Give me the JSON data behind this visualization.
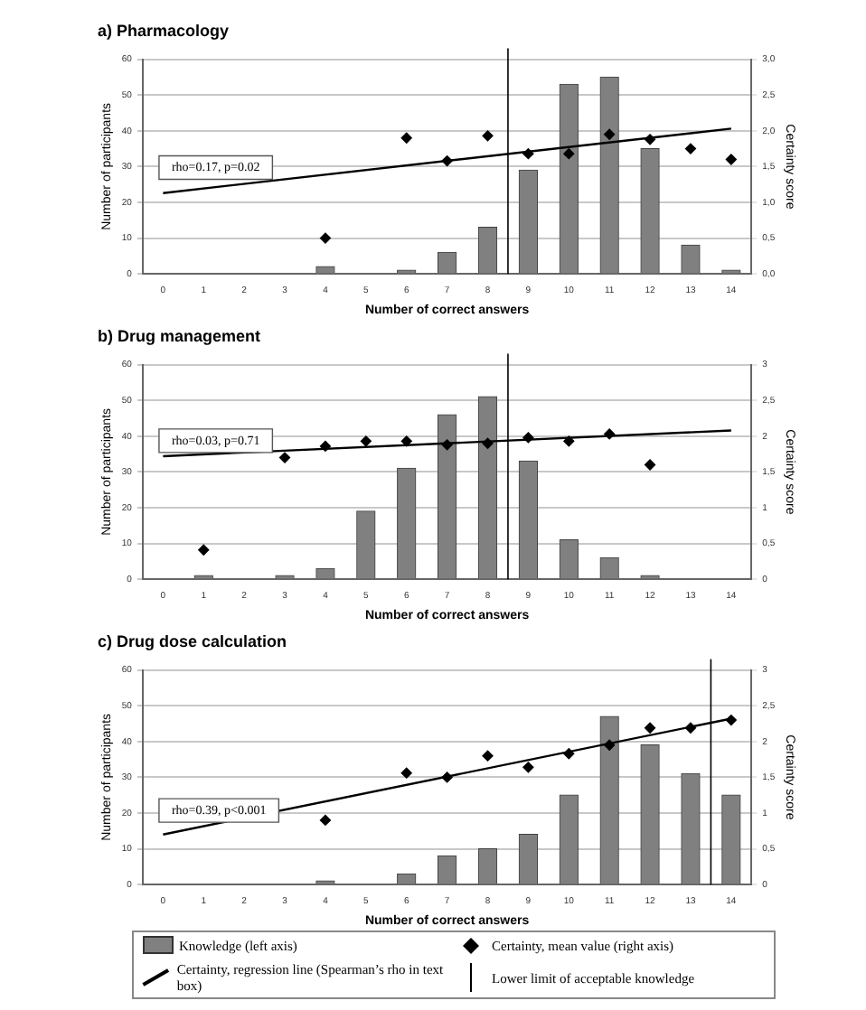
{
  "chart_data": [
    {
      "type": "bar",
      "title": "a) Pharmacology",
      "xlabel": "Number of correct answers",
      "ylabel": "Number of participants",
      "y2label": "Certainty score",
      "xlim": [
        -0.5,
        14.5
      ],
      "xticks": [
        0,
        1,
        2,
        3,
        4,
        5,
        6,
        7,
        8,
        9,
        10,
        11,
        12,
        13,
        14
      ],
      "ylim": [
        0,
        60
      ],
      "yticks": [
        0,
        10,
        20,
        30,
        40,
        50,
        60
      ],
      "y2lim": [
        0,
        3
      ],
      "y2ticks": [
        {
          "value": 0,
          "label": "0,0"
        },
        {
          "value": 0.5,
          "label": "0,5"
        },
        {
          "value": 1,
          "label": "1,0"
        },
        {
          "value": 1.5,
          "label": "1,5"
        },
        {
          "value": 2,
          "label": "2,0"
        },
        {
          "value": 2.5,
          "label": "2,5"
        },
        {
          "value": 3,
          "label": "3,0"
        }
      ],
      "grid": "y",
      "annotations": [
        "rho=0.17, p=0.02"
      ],
      "series": [
        {
          "color": "#808080",
          "x": [
            4,
            6,
            7,
            8,
            9,
            10,
            11,
            12,
            13,
            14
          ],
          "values": [
            2,
            1,
            6,
            13,
            29,
            53,
            55,
            35,
            8,
            1
          ]
        },
        {
          "type": "scatter",
          "color": "#000000",
          "marker": "diamond",
          "axis": "y2",
          "x": [
            4,
            6,
            7,
            8,
            9,
            10,
            11,
            12,
            13,
            14
          ],
          "values": [
            0.5,
            1.9,
            1.58,
            1.93,
            1.68,
            1.68,
            1.95,
            1.88,
            1.75,
            1.6
          ]
        },
        {
          "type": "line",
          "color": "#000000",
          "axis": "y2",
          "x": [
            0,
            14
          ],
          "values": [
            1.13,
            2.03
          ]
        }
      ],
      "ref_lines": [
        {
          "axis": "x",
          "value": 8.5,
          "color": "#000000"
        }
      ]
    },
    {
      "type": "bar",
      "title": "b) Drug management",
      "xlabel": "Number of correct answers",
      "ylabel": "Number of participants",
      "y2label": "Certainty score",
      "xlim": [
        -0.5,
        14.5
      ],
      "xticks": [
        0,
        1,
        2,
        3,
        4,
        5,
        6,
        7,
        8,
        9,
        10,
        11,
        12,
        13,
        14
      ],
      "ylim": [
        0,
        60
      ],
      "yticks": [
        0,
        10,
        20,
        30,
        40,
        50,
        60
      ],
      "y2lim": [
        0,
        3
      ],
      "y2ticks": [
        0,
        {
          "value": 0.5,
          "label": "0,5"
        },
        1,
        {
          "value": 1.5,
          "label": "1,5"
        },
        2,
        {
          "value": 2.5,
          "label": "2,5"
        },
        3
      ],
      "grid": "y",
      "annotations": [
        "rho=0.03, p=0.71"
      ],
      "series": [
        {
          "color": "#808080",
          "x": [
            1,
            3,
            4,
            5,
            6,
            7,
            8,
            9,
            10,
            11,
            12
          ],
          "values": [
            1,
            1,
            3,
            19,
            31,
            46,
            51,
            33,
            11,
            6,
            1
          ]
        },
        {
          "type": "scatter",
          "color": "#000000",
          "marker": "diamond",
          "axis": "y2",
          "x": [
            1,
            3,
            4,
            5,
            6,
            7,
            8,
            9,
            10,
            11,
            12
          ],
          "values": [
            0.41,
            1.7,
            1.86,
            1.93,
            1.93,
            1.88,
            1.9,
            1.98,
            1.93,
            2.03,
            1.6
          ]
        },
        {
          "type": "line",
          "color": "#000000",
          "axis": "y2",
          "x": [
            0,
            14
          ],
          "values": [
            1.72,
            2.08
          ]
        }
      ],
      "ref_lines": [
        {
          "axis": "x",
          "value": 8.5,
          "color": "#000000"
        }
      ]
    },
    {
      "type": "bar",
      "title": "c) Drug dose calculation",
      "xlabel": "Number of correct answers",
      "ylabel": "Number of participants",
      "y2label": "Certainty score",
      "xlim": [
        -0.5,
        14.5
      ],
      "xticks": [
        0,
        1,
        2,
        3,
        4,
        5,
        6,
        7,
        8,
        9,
        10,
        11,
        12,
        13,
        14
      ],
      "ylim": [
        0,
        60
      ],
      "yticks": [
        0,
        10,
        20,
        30,
        40,
        50,
        60
      ],
      "y2lim": [
        0,
        3
      ],
      "y2ticks": [
        0,
        {
          "value": 0.5,
          "label": "0,5"
        },
        1,
        {
          "value": 1.5,
          "label": "1,5"
        },
        2,
        {
          "value": 2.5,
          "label": "2,5"
        },
        3
      ],
      "grid": "y",
      "legend": "bottom",
      "annotations": [
        "rho=0.39, p<0.001"
      ],
      "series": [
        {
          "name": "Knowledge (left axis)",
          "color": "#808080",
          "x": [
            4,
            6,
            7,
            8,
            9,
            10,
            11,
            12,
            13,
            14
          ],
          "values": [
            1,
            3,
            8,
            10,
            14,
            25,
            47,
            39,
            31,
            25
          ]
        },
        {
          "type": "scatter",
          "name": "Certainty, mean value (right axis)",
          "color": "#000000",
          "marker": "diamond",
          "axis": "y2",
          "x": [
            4,
            6,
            7,
            8,
            9,
            10,
            11,
            12,
            13,
            14
          ],
          "values": [
            0.9,
            1.56,
            1.5,
            1.8,
            1.64,
            1.83,
            1.95,
            2.19,
            2.19,
            2.3
          ]
        },
        {
          "type": "line",
          "name": "Certainty, regression line (Spearman’s rho in text box)",
          "color": "#000000",
          "axis": "y2",
          "x": [
            0,
            14
          ],
          "values": [
            0.7,
            2.32
          ]
        }
      ],
      "ref_lines": [
        {
          "axis": "x",
          "value": 13.5,
          "color": "#000000",
          "label": "Lower limit of acceptable knowledge"
        }
      ]
    }
  ]
}
